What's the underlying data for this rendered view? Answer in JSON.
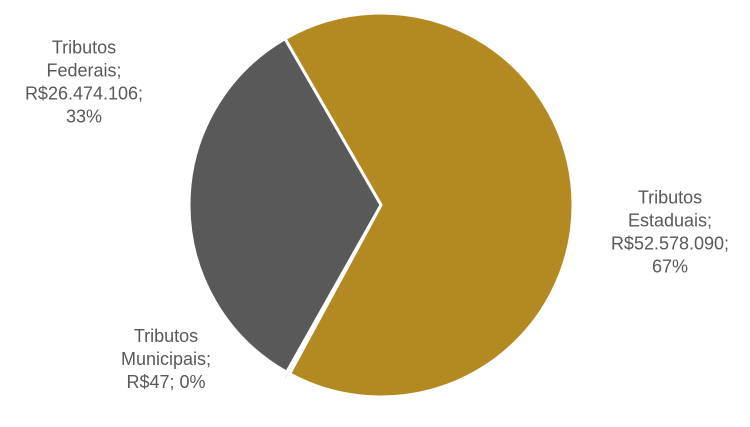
{
  "chart_data": {
    "type": "pie",
    "title": "",
    "slices": [
      {
        "category": "Tributos Estaduais",
        "value": 52578090,
        "value_text": "R$52.578.090",
        "percent_text": "67%",
        "color": "#B38A22",
        "label_lines": [
          "Tributos",
          "Estaduais;",
          "R$52.578.090;",
          "67%"
        ]
      },
      {
        "category": "Tributos Municipais",
        "value": 47,
        "value_text": "R$47",
        "percent_text": "0%",
        "color": "#A5A5A5",
        "label_lines": [
          "Tributos",
          "Municipais;",
          "R$47; 0%"
        ]
      },
      {
        "category": "Tributos Federais",
        "value": 26474106,
        "value_text": "R$26.474.106",
        "percent_text": "33%",
        "color": "#595959",
        "label_lines": [
          "Tributos",
          "Federais;",
          "R$26.474.106;",
          "33%"
        ]
      }
    ],
    "legend": "none",
    "label_color": "#595959"
  }
}
